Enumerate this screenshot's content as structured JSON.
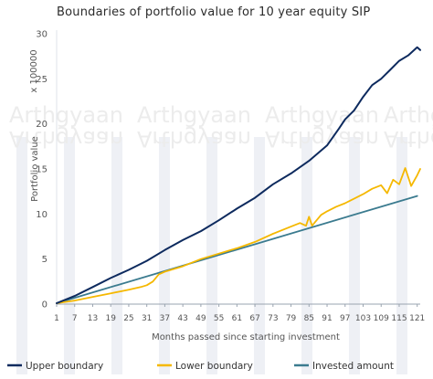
{
  "chart_data": {
    "type": "line",
    "title": "Boundaries of portfolio value for 10 year equity SIP",
    "xlabel": "Months passed since starting investment",
    "ylabel": "Portfolio value",
    "y_multiplier_label": "x 100000",
    "watermark": "Arthgyaan",
    "ylim": [
      0,
      30
    ],
    "xlim": [
      1,
      122
    ],
    "y_ticks": [
      "0",
      "5",
      "10",
      "15",
      "20",
      "25",
      "30"
    ],
    "x_ticks": [
      "1",
      "7",
      "13",
      "19",
      "25",
      "31",
      "37",
      "43",
      "49",
      "55",
      "61",
      "67",
      "73",
      "79",
      "85",
      "91",
      "97",
      "103",
      "109",
      "115",
      "121"
    ],
    "legend_position": "bottom",
    "grid": false,
    "series": [
      {
        "name": "Upper boundary",
        "color": "#0d2a5e",
        "x": [
          1,
          7,
          13,
          19,
          25,
          31,
          37,
          43,
          49,
          55,
          61,
          67,
          73,
          79,
          85,
          91,
          95,
          97,
          100,
          103,
          106,
          109,
          112,
          115,
          118,
          120,
          121,
          122
        ],
        "values": [
          0.1,
          0.9,
          1.9,
          2.9,
          3.8,
          4.8,
          6.0,
          7.1,
          8.1,
          9.3,
          10.6,
          11.8,
          13.3,
          14.5,
          15.9,
          17.6,
          19.5,
          20.5,
          21.5,
          23.0,
          24.3,
          25.0,
          26.0,
          27.0,
          27.6,
          28.2,
          28.5,
          28.2
        ]
      },
      {
        "name": "Lower boundary",
        "color": "#f5b800",
        "x": [
          1,
          7,
          13,
          19,
          25,
          29,
          31,
          33,
          35,
          37,
          43,
          49,
          55,
          61,
          67,
          73,
          79,
          82,
          84,
          85,
          86,
          89,
          91,
          94,
          97,
          100,
          103,
          106,
          109,
          111,
          113,
          115,
          117,
          119,
          121,
          122
        ],
        "values": [
          0.1,
          0.4,
          0.8,
          1.2,
          1.6,
          1.9,
          2.1,
          2.5,
          3.3,
          3.6,
          4.2,
          5.0,
          5.6,
          6.2,
          6.9,
          7.8,
          8.6,
          9.0,
          8.7,
          9.7,
          8.7,
          9.9,
          10.3,
          10.8,
          11.2,
          11.7,
          12.2,
          12.8,
          13.2,
          12.3,
          13.8,
          13.3,
          15.1,
          13.1,
          14.3,
          15.0
        ]
      },
      {
        "name": "Invested amount",
        "color": "#3b7b8f",
        "x": [
          1,
          121
        ],
        "values": [
          0.1,
          12.0
        ]
      }
    ]
  }
}
